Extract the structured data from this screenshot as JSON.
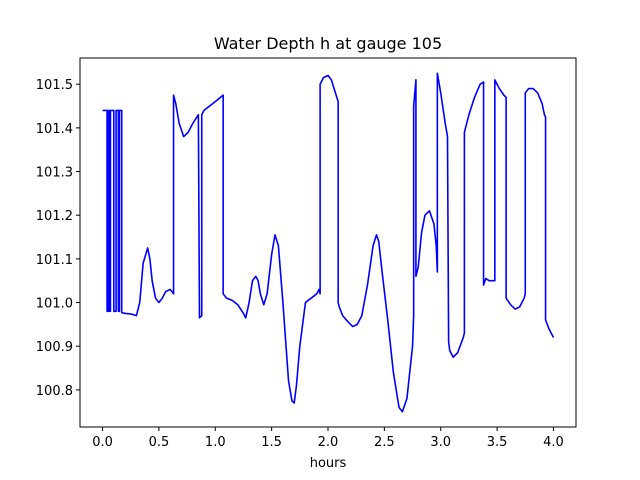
{
  "chart_data": {
    "type": "line",
    "title": "Water Depth h at gauge 105",
    "xlabel": "hours",
    "ylabel": "",
    "xlim": [
      -0.2,
      4.2
    ],
    "ylim": [
      100.715,
      101.56
    ],
    "grid": false,
    "xticks": [
      0.0,
      0.5,
      1.0,
      1.5,
      2.0,
      2.5,
      3.0,
      3.5,
      4.0
    ],
    "xtick_labels": [
      "0.0",
      "0.5",
      "1.0",
      "1.5",
      "2.0",
      "2.5",
      "3.0",
      "3.5",
      "4.0"
    ],
    "yticks": [
      100.8,
      100.9,
      101.0,
      101.1,
      101.2,
      101.3,
      101.4,
      101.5
    ],
    "ytick_labels": [
      "100.8",
      "100.9",
      "101.0",
      "101.1",
      "101.2",
      "101.3",
      "101.4",
      "101.5"
    ],
    "series": [
      {
        "name": "",
        "color": "#0000ff",
        "x": [
          0.0,
          0.04,
          0.04,
          0.05,
          0.05,
          0.06,
          0.06,
          0.07,
          0.07,
          0.1,
          0.1,
          0.12,
          0.12,
          0.14,
          0.14,
          0.15,
          0.15,
          0.17,
          0.17,
          0.2,
          0.25,
          0.3,
          0.33,
          0.36,
          0.4,
          0.42,
          0.44,
          0.47,
          0.5,
          0.53,
          0.56,
          0.6,
          0.63,
          0.63,
          0.65,
          0.68,
          0.72,
          0.76,
          0.8,
          0.85,
          0.86,
          0.86,
          0.88,
          0.88,
          0.9,
          0.95,
          1.0,
          1.07,
          1.07,
          1.1,
          1.15,
          1.2,
          1.25,
          1.27,
          1.3,
          1.33,
          1.36,
          1.38,
          1.4,
          1.43,
          1.46,
          1.5,
          1.53,
          1.56,
          1.6,
          1.65,
          1.68,
          1.7,
          1.72,
          1.75,
          1.8,
          1.85,
          1.9,
          1.92,
          1.93,
          1.93,
          1.96,
          2.0,
          2.03,
          2.06,
          2.09,
          2.09,
          2.1,
          2.13,
          2.18,
          2.22,
          2.26,
          2.3,
          2.35,
          2.4,
          2.43,
          2.45,
          2.48,
          2.53,
          2.58,
          2.63,
          2.66,
          2.7,
          2.75,
          2.76,
          2.76,
          2.78,
          2.78,
          2.8,
          2.83,
          2.86,
          2.9,
          2.94,
          2.96,
          2.97,
          2.97,
          3.0,
          3.04,
          3.06,
          3.07,
          3.08,
          3.11,
          3.15,
          3.2,
          3.21,
          3.21,
          3.25,
          3.3,
          3.35,
          3.38,
          3.38,
          3.4,
          3.43,
          3.47,
          3.48,
          3.48,
          3.52,
          3.56,
          3.58,
          3.58,
          3.62,
          3.66,
          3.7,
          3.74,
          3.75,
          3.75,
          3.78,
          3.82,
          3.86,
          3.9,
          3.92,
          3.93,
          3.93,
          3.96,
          4.0
        ],
        "y": [
          101.44,
          101.44,
          100.98,
          100.98,
          101.44,
          101.44,
          100.98,
          100.98,
          101.44,
          101.44,
          100.98,
          100.98,
          101.44,
          101.44,
          100.98,
          100.98,
          101.44,
          101.44,
          100.977,
          100.975,
          100.974,
          100.97,
          101.0,
          101.09,
          101.125,
          101.1,
          101.05,
          101.01,
          101.0,
          101.01,
          101.025,
          101.03,
          101.02,
          101.475,
          101.455,
          101.41,
          101.38,
          101.39,
          101.41,
          101.43,
          100.965,
          100.965,
          100.97,
          101.43,
          101.44,
          101.45,
          101.46,
          101.475,
          101.02,
          101.01,
          101.005,
          100.995,
          100.975,
          100.965,
          101.0,
          101.05,
          101.06,
          101.05,
          101.02,
          100.995,
          101.02,
          101.11,
          101.155,
          101.13,
          101.0,
          100.82,
          100.775,
          100.77,
          100.81,
          100.9,
          101.0,
          101.01,
          101.02,
          101.03,
          101.02,
          101.5,
          101.515,
          101.52,
          101.51,
          101.485,
          101.46,
          101.0,
          100.99,
          100.97,
          100.955,
          100.945,
          100.95,
          100.97,
          101.04,
          101.13,
          101.155,
          101.14,
          101.07,
          100.96,
          100.84,
          100.76,
          100.75,
          100.78,
          100.9,
          100.97,
          101.45,
          101.51,
          101.06,
          101.08,
          101.16,
          101.2,
          101.21,
          101.18,
          101.13,
          101.07,
          101.525,
          101.48,
          101.41,
          101.38,
          100.91,
          100.89,
          100.875,
          100.885,
          100.92,
          100.93,
          101.39,
          101.43,
          101.47,
          101.5,
          101.505,
          101.04,
          101.055,
          101.05,
          101.05,
          101.05,
          101.51,
          101.49,
          101.475,
          101.47,
          101.01,
          100.995,
          100.985,
          100.99,
          101.01,
          101.02,
          101.48,
          101.49,
          101.49,
          101.48,
          101.455,
          101.43,
          101.425,
          100.96,
          100.94,
          100.92
        ]
      }
    ]
  }
}
